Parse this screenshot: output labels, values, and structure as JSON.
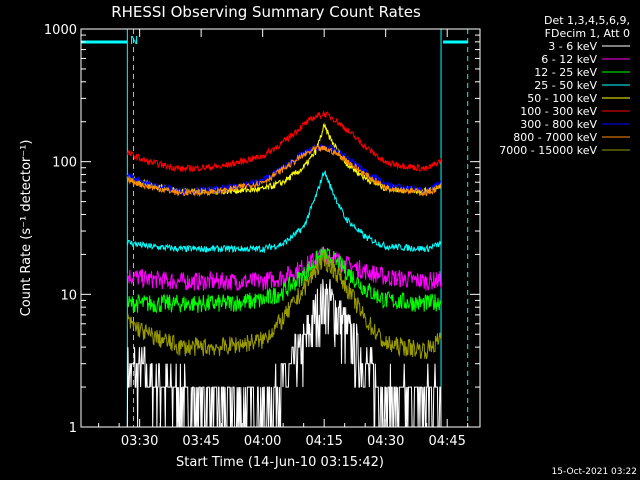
{
  "chart_data": {
    "type": "line",
    "title": "RHESSI Observing Summary Count Rates",
    "xlabel": "Start Time (14-Jun-10 03:15:42)",
    "ylabel": "Count Rate (s⁻¹ detector⁻¹)",
    "y_scale": "log",
    "ylim": [
      1,
      1000
    ],
    "xlim": [
      "03:15:42",
      "04:53:00"
    ],
    "x_tick_labels": [
      "03:30",
      "03:45",
      "04:00",
      "04:15",
      "04:30",
      "04:45"
    ],
    "x_tick_minutes": [
      210,
      225,
      240,
      255,
      270,
      285
    ],
    "y_tick_labels": [
      "1",
      "10",
      "100",
      "1000"
    ],
    "y_tick_values": [
      1,
      10,
      100,
      1000
    ],
    "legend_header": [
      "Det 1,3,4,5,6,9,",
      "FDecim 1, Att 0"
    ],
    "flag_marker_label": "N",
    "flag_bars": [
      {
        "x_start": "03:15:42",
        "x_end": "03:27:00",
        "color": "#00ffff"
      },
      {
        "x_start": "04:44:00",
        "x_end": "04:50:00",
        "color": "#00ffff"
      }
    ],
    "night_boundaries": [
      {
        "time": "03:27:00",
        "style": "solid",
        "color": "#00ffff"
      },
      {
        "time": "03:28:30",
        "style": "dashed",
        "color": "#00ffff"
      },
      {
        "time": "04:43:30",
        "style": "solid",
        "color": "#00ffff"
      },
      {
        "time": "04:50:00",
        "style": "dashed",
        "color": "#00ffff"
      }
    ],
    "x_minutes": [
      206,
      212,
      220,
      230,
      240,
      245,
      250,
      253,
      255,
      257,
      260,
      265,
      270,
      280,
      285
    ],
    "series": [
      {
        "name": "3 - 6 keV",
        "color": "#ffffff",
        "values": [
          2.8,
          2.3,
          1.7,
          1.4,
          1.3,
          2.0,
          3.8,
          7.0,
          9.0,
          8.0,
          5.5,
          2.7,
          1.6,
          1.6,
          2.4
        ]
      },
      {
        "name": "6 - 12 keV",
        "color": "#ff00ff",
        "values": [
          14,
          13,
          12.5,
          12.5,
          12.5,
          13.5,
          16,
          18.5,
          20,
          19,
          17,
          15,
          13.5,
          12.5,
          13
        ]
      },
      {
        "name": "12 - 25 keV",
        "color": "#00ff00",
        "values": [
          8.5,
          8.5,
          8.5,
          8.5,
          9.0,
          10.5,
          14,
          18,
          20,
          18.5,
          15.5,
          11,
          9,
          8.5,
          9
        ]
      },
      {
        "name": "25 - 50 keV",
        "color": "#00ffff",
        "values": [
          25,
          23,
          22,
          22,
          22,
          24,
          32,
          55,
          85,
          60,
          38,
          27,
          23,
          22,
          25
        ]
      },
      {
        "name": "50 - 100 keV",
        "color": "#ffff00",
        "values": [
          78,
          67,
          60,
          60,
          62,
          70,
          90,
          120,
          185,
          140,
          100,
          75,
          63,
          60,
          70
        ]
      },
      {
        "name": "100 - 300 keV",
        "color": "#ff0000",
        "values": [
          120,
          100,
          88,
          92,
          110,
          140,
          190,
          220,
          230,
          215,
          180,
          130,
          98,
          88,
          108
        ]
      },
      {
        "name": "300 - 800 keV",
        "color": "#0000ff",
        "values": [
          82,
          68,
          60,
          62,
          72,
          90,
          115,
          128,
          130,
          125,
          110,
          85,
          67,
          60,
          72
        ]
      },
      {
        "name": "800 - 7000 keV",
        "color": "#ff8c00",
        "values": [
          75,
          65,
          58,
          60,
          70,
          88,
          112,
          125,
          125,
          120,
          105,
          80,
          64,
          58,
          68
        ]
      },
      {
        "name": "7000 - 15000 keV",
        "color": "#999900",
        "values": [
          6.5,
          5.0,
          4.0,
          4.0,
          4.5,
          6.5,
          11,
          15.5,
          18,
          16,
          12,
          6.5,
          4.2,
          3.8,
          5
        ]
      }
    ],
    "timestamp": "15-Oct-2021 03:22"
  }
}
